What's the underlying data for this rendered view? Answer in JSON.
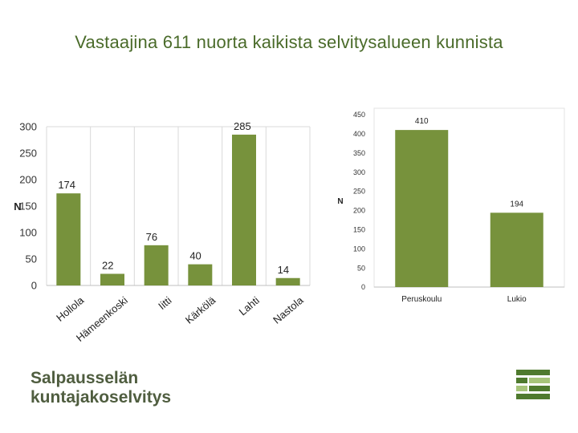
{
  "title": "Vastaajina 611 nuorta kaikista selvitysalueen kunnista",
  "brand": {
    "line1": "Salpausselän",
    "line2": "kuntajakoselvitys"
  },
  "colors": {
    "bar": "#77923c",
    "title": "#4a6b2a",
    "grid": "#d9d9d9",
    "brand_text": "#4f5d3f",
    "logo_dark": "#4f7a2e",
    "logo_light": "#a7c47a"
  },
  "chart_data": [
    {
      "type": "bar",
      "categories": [
        "Hollola",
        "Hämeenkoski",
        "Iitti",
        "Kärkölä",
        "Lahti",
        "Nastola"
      ],
      "values": [
        174,
        22,
        76,
        40,
        285,
        14
      ],
      "ylabel": "N",
      "ylim": [
        0,
        300
      ],
      "yticks": [
        0,
        50,
        100,
        150,
        200,
        250,
        300
      ],
      "grid": "vertical"
    },
    {
      "type": "bar",
      "categories": [
        "Peruskoulu",
        "Lukio"
      ],
      "values": [
        410,
        194
      ],
      "ylabel": "N",
      "ylim": [
        0,
        450
      ],
      "yticks": [
        0,
        50,
        100,
        150,
        200,
        250,
        300,
        350,
        400,
        450
      ],
      "grid": "none"
    }
  ]
}
